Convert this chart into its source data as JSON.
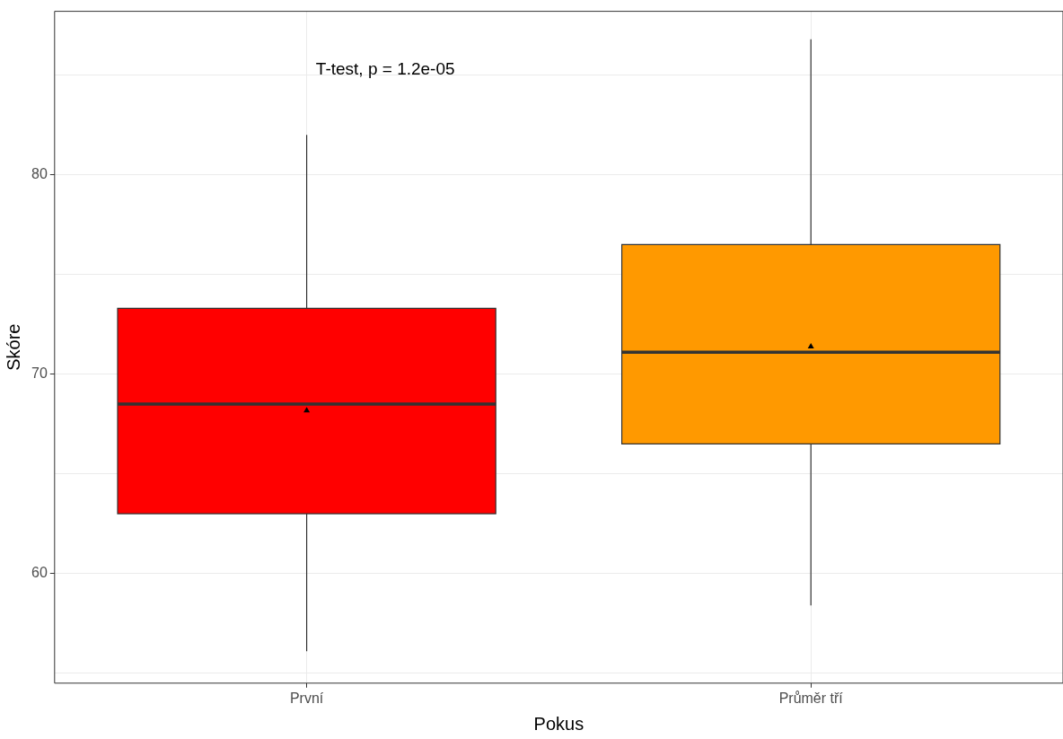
{
  "chart_data": {
    "type": "box",
    "xlabel": "Pokus",
    "ylabel": "Skóre",
    "categories": [
      "První",
      "Průměr tří"
    ],
    "colors": [
      "#ff0000",
      "#ff9900"
    ],
    "boxes": [
      {
        "low": 56.1,
        "q1": 63,
        "median": 68.5,
        "q3": 73.3,
        "high": 82,
        "mean": 68.2
      },
      {
        "low": 58.4,
        "q1": 66.5,
        "median": 71.1,
        "q3": 76.5,
        "high": 86.8,
        "mean": 71.4
      }
    ],
    "ylim": [
      54.5,
      88.2
    ],
    "yticks": [
      {
        "value": 55,
        "label": null
      },
      60,
      {
        "value": 65,
        "label": null
      },
      70,
      {
        "value": 75,
        "label": null
      },
      80,
      {
        "value": 85,
        "label": null
      }
    ],
    "grid": true,
    "marker": "triangle",
    "annotations": [
      "T-test, p = 1.2e-05"
    ]
  }
}
